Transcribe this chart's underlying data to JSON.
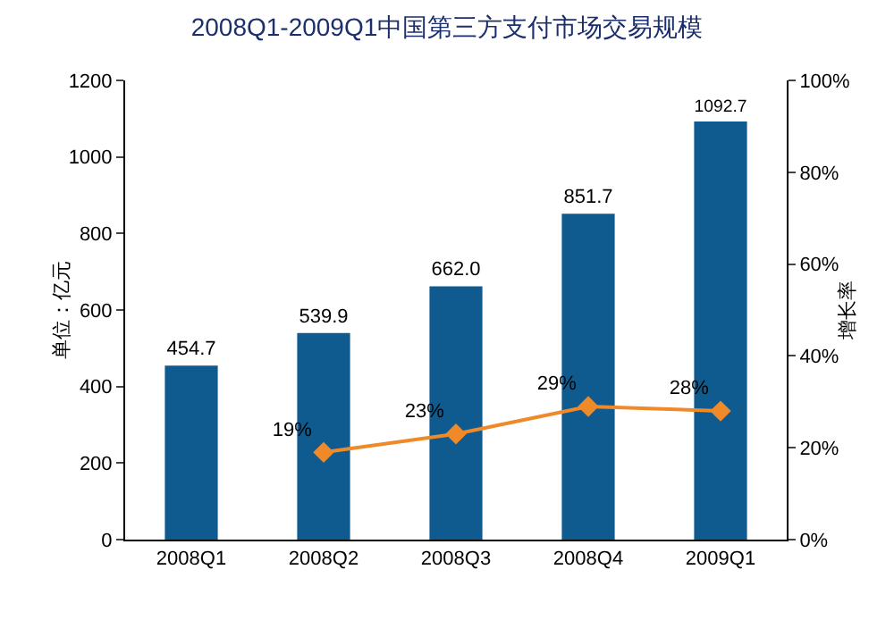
{
  "chart_data": {
    "type": "bar",
    "title": "2008Q1-2009Q1中国第三方支付市场交易规模",
    "ylabel": "单位：亿元",
    "y2label": "增长率",
    "categories": [
      "2008Q1",
      "2008Q2",
      "2008Q3",
      "2008Q4",
      "2009Q1"
    ],
    "series": [
      {
        "color": "#0f5b8f",
        "values": [
          454.7,
          539.9,
          662.0,
          851.7,
          1092.7
        ],
        "value_labels": [
          "454.7",
          "539.9",
          "662.0",
          "851.7",
          "1092.7"
        ]
      },
      {
        "type": "line",
        "axis": "y2",
        "color": "#ee8a2a",
        "marker": "diamond",
        "values": [
          null,
          19,
          23,
          29,
          28
        ],
        "value_labels": [
          null,
          "19%",
          "23%",
          "29%",
          "28%"
        ]
      }
    ],
    "ylim": [
      0,
      1200
    ],
    "yticks": [
      0,
      200,
      400,
      600,
      800,
      1000,
      1200
    ],
    "y2lim": [
      0,
      100
    ],
    "y2ticks": [
      {
        "value": 0,
        "label": "0%"
      },
      {
        "value": 20,
        "label": "20%"
      },
      {
        "value": 40,
        "label": "40%"
      },
      {
        "value": 60,
        "label": "60%"
      },
      {
        "value": 80,
        "label": "80%"
      },
      {
        "value": 100,
        "label": "100%"
      }
    ]
  }
}
